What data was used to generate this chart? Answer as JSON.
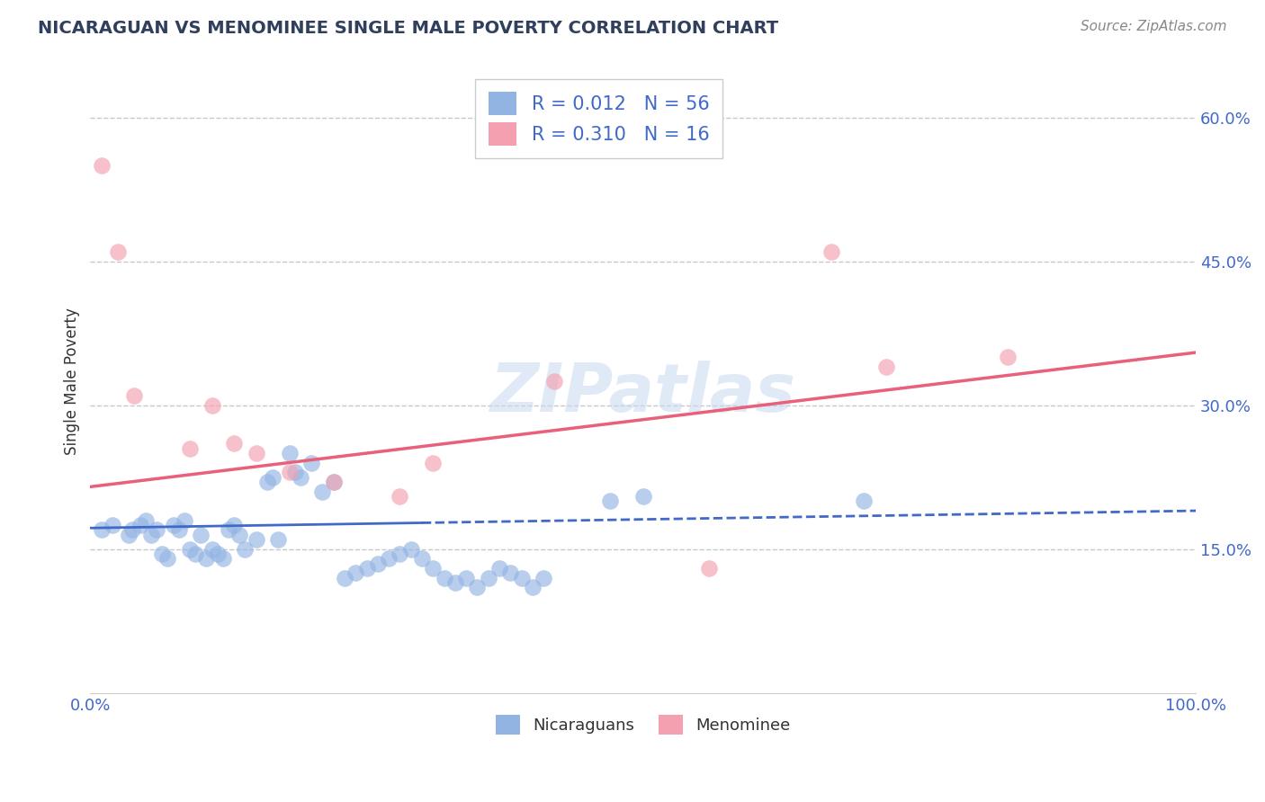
{
  "title": "NICARAGUAN VS MENOMINEE SINGLE MALE POVERTY CORRELATION CHART",
  "source": "Source: ZipAtlas.com",
  "ylabel": "Single Male Poverty",
  "R1": 0.012,
  "N1": 56,
  "R2": 0.31,
  "N2": 16,
  "legend_label1": "Nicaraguans",
  "legend_label2": "Menominee",
  "blue_color": "#92B4E3",
  "pink_color": "#F4A0B0",
  "blue_line_color": "#4169C8",
  "pink_line_color": "#E8607A",
  "title_color": "#2F3F5C",
  "tick_color": "#4169C8",
  "grid_color": "#C8C8C8",
  "watermark": "ZIPatlas",
  "blue_x": [
    1.0,
    2.0,
    3.5,
    3.8,
    4.5,
    5.0,
    5.5,
    6.0,
    6.5,
    7.0,
    7.5,
    8.0,
    8.5,
    9.0,
    9.5,
    10.0,
    10.5,
    11.0,
    11.5,
    12.0,
    12.5,
    13.0,
    13.5,
    14.0,
    15.0,
    16.0,
    16.5,
    17.0,
    18.0,
    18.5,
    19.0,
    20.0,
    21.0,
    22.0,
    23.0,
    24.0,
    25.0,
    26.0,
    27.0,
    28.0,
    29.0,
    30.0,
    31.0,
    32.0,
    33.0,
    34.0,
    35.0,
    36.0,
    37.0,
    38.0,
    39.0,
    40.0,
    41.0,
    47.0,
    50.0,
    70.0
  ],
  "blue_y": [
    17.0,
    17.5,
    16.5,
    17.0,
    17.5,
    18.0,
    16.5,
    17.0,
    14.5,
    14.0,
    17.5,
    17.0,
    18.0,
    15.0,
    14.5,
    16.5,
    14.0,
    15.0,
    14.5,
    14.0,
    17.0,
    17.5,
    16.5,
    15.0,
    16.0,
    22.0,
    22.5,
    16.0,
    25.0,
    23.0,
    22.5,
    24.0,
    21.0,
    22.0,
    12.0,
    12.5,
    13.0,
    13.5,
    14.0,
    14.5,
    15.0,
    14.0,
    13.0,
    12.0,
    11.5,
    12.0,
    11.0,
    12.0,
    13.0,
    12.5,
    12.0,
    11.0,
    12.0,
    20.0,
    20.5,
    20.0
  ],
  "pink_x": [
    1.0,
    2.5,
    4.0,
    9.0,
    11.0,
    13.0,
    15.0,
    18.0,
    22.0,
    28.0,
    31.0,
    42.0,
    56.0,
    67.0,
    72.0,
    83.0
  ],
  "pink_y": [
    55.0,
    46.0,
    31.0,
    25.5,
    30.0,
    26.0,
    25.0,
    23.0,
    22.0,
    20.5,
    24.0,
    32.5,
    13.0,
    46.0,
    34.0,
    35.0
  ],
  "xlim": [
    0,
    100
  ],
  "ylim": [
    0,
    65
  ],
  "yticks": [
    15,
    30,
    45,
    60
  ],
  "xtick_labels": [
    "0.0%",
    "100.0%"
  ],
  "ytick_labels": [
    "15.0%",
    "30.0%",
    "45.0%",
    "60.0%"
  ],
  "blue_trend_x": [
    0,
    100
  ],
  "blue_trend_y": [
    17.2,
    19.0
  ],
  "pink_trend_x": [
    0,
    100
  ],
  "pink_trend_y": [
    21.5,
    35.5
  ]
}
